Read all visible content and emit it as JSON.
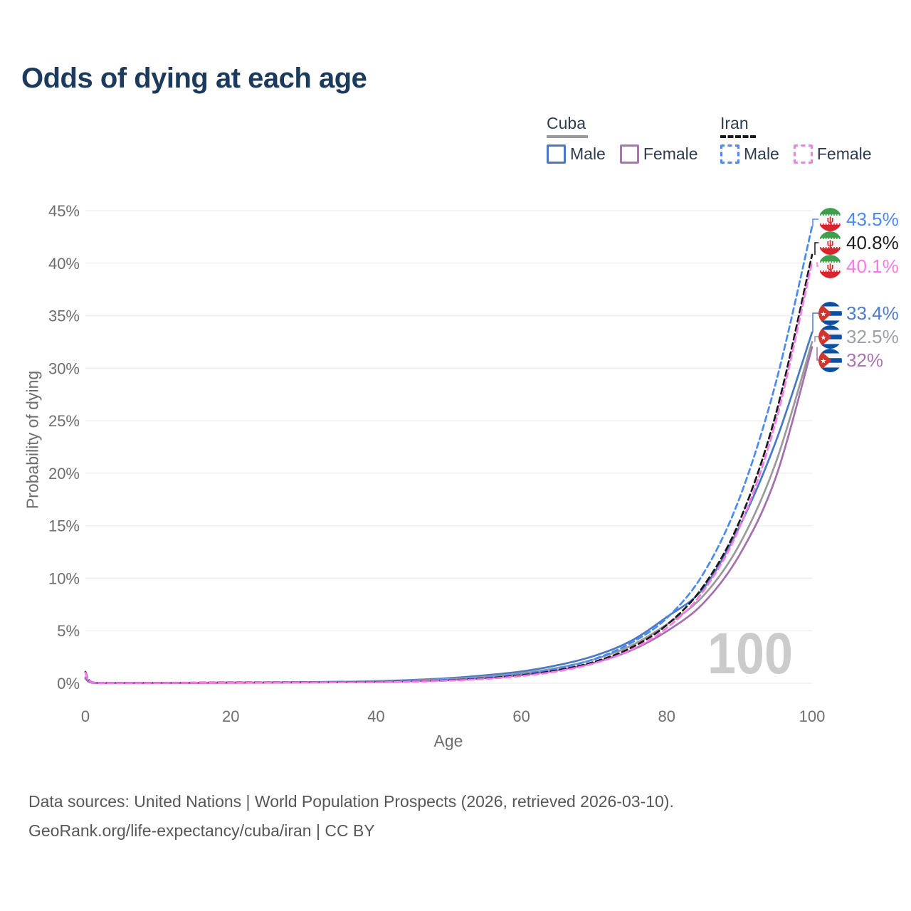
{
  "title": "Odds of dying at each age",
  "legend": {
    "groups": [
      {
        "label": "Cuba",
        "line_style": "solid",
        "underline_color": "#9a9a9a",
        "items": [
          {
            "label": "Male",
            "color": "#4779c4"
          },
          {
            "label": "Female",
            "color": "#ae74b0"
          }
        ]
      },
      {
        "label": "Iran",
        "line_style": "dashed",
        "underline_color": "#191919",
        "items": [
          {
            "label": "Male",
            "color": "#4a8af4"
          },
          {
            "label": "Female",
            "color": "#fa78e9"
          }
        ]
      }
    ]
  },
  "axes": {
    "y_title": "Probability of dying",
    "x_title": "Age"
  },
  "watermark": "100",
  "end_labels": [
    {
      "value": "43.5%",
      "color": "#4a8af4",
      "flag": "iran",
      "series": "Iran Male"
    },
    {
      "value": "40.8%",
      "color": "#1d1d1d",
      "flag": "iran",
      "series": "Iran All"
    },
    {
      "value": "40.1%",
      "color": "#fa78e9",
      "flag": "iran",
      "series": "Iran Female"
    },
    {
      "value": "33.4%",
      "color": "#4b7ccd",
      "flag": "cuba",
      "series": "Cuba Male"
    },
    {
      "value": "32.5%",
      "color": "#9da1a6",
      "flag": "cuba",
      "series": "Cuba All"
    },
    {
      "value": "32%",
      "color": "#a973b2",
      "flag": "cuba",
      "series": "Cuba Female"
    }
  ],
  "footer": {
    "line1": "Data sources: United Nations | World Population Prospects (2026, retrieved 2026-03-10).",
    "line2": "GeoRank.org/life-expectancy/cuba/iran | CC BY"
  },
  "chart_data": {
    "type": "line",
    "title": "Odds of dying at each age",
    "xlabel": "Age",
    "ylabel": "Probability of dying",
    "xlim": [
      0,
      100
    ],
    "ylim": [
      0,
      45
    ],
    "x_ticks": [
      0,
      20,
      40,
      60,
      80,
      100
    ],
    "y_ticks": [
      0,
      5,
      10,
      15,
      20,
      25,
      30,
      35,
      40,
      45
    ],
    "y_tick_labels": [
      "0%",
      "5%",
      "10%",
      "15%",
      "20%",
      "25%",
      "30%",
      "35%",
      "40%",
      "45%"
    ],
    "grid": "horizontal-only",
    "legend_position": "top-right",
    "unit": "percent",
    "series": [
      {
        "name": "Cuba Male",
        "color": "#4779c4",
        "dash": "solid",
        "end_label": "33.4%",
        "points": [
          [
            0,
            0.55
          ],
          [
            1,
            0.05
          ],
          [
            5,
            0.03
          ],
          [
            10,
            0.03
          ],
          [
            15,
            0.05
          ],
          [
            20,
            0.07
          ],
          [
            25,
            0.08
          ],
          [
            30,
            0.1
          ],
          [
            35,
            0.14
          ],
          [
            40,
            0.2
          ],
          [
            45,
            0.31
          ],
          [
            50,
            0.48
          ],
          [
            55,
            0.75
          ],
          [
            60,
            1.12
          ],
          [
            65,
            1.72
          ],
          [
            70,
            2.6
          ],
          [
            75,
            4.0
          ],
          [
            80,
            6.3
          ],
          [
            85,
            9.0
          ],
          [
            90,
            14.9
          ],
          [
            95,
            23.0
          ],
          [
            100,
            33.4
          ]
        ]
      },
      {
        "name": "Cuba All",
        "color": "#9a9a9a",
        "dash": "solid",
        "end_label": "32.5%",
        "points": [
          [
            0,
            0.5
          ],
          [
            1,
            0.04
          ],
          [
            5,
            0.025
          ],
          [
            10,
            0.025
          ],
          [
            15,
            0.04
          ],
          [
            20,
            0.06
          ],
          [
            25,
            0.07
          ],
          [
            30,
            0.09
          ],
          [
            35,
            0.12
          ],
          [
            40,
            0.17
          ],
          [
            45,
            0.26
          ],
          [
            50,
            0.4
          ],
          [
            55,
            0.61
          ],
          [
            60,
            0.95
          ],
          [
            65,
            1.47
          ],
          [
            70,
            2.27
          ],
          [
            75,
            3.55
          ],
          [
            80,
            5.6
          ],
          [
            85,
            8.3
          ],
          [
            90,
            13.2
          ],
          [
            95,
            21.0
          ],
          [
            100,
            32.5
          ]
        ]
      },
      {
        "name": "Cuba Female",
        "color": "#a46fae",
        "dash": "solid",
        "end_label": "32%",
        "points": [
          [
            0,
            0.45
          ],
          [
            1,
            0.04
          ],
          [
            5,
            0.02
          ],
          [
            10,
            0.02
          ],
          [
            15,
            0.03
          ],
          [
            20,
            0.04
          ],
          [
            25,
            0.05
          ],
          [
            30,
            0.07
          ],
          [
            35,
            0.09
          ],
          [
            40,
            0.13
          ],
          [
            45,
            0.2
          ],
          [
            50,
            0.31
          ],
          [
            55,
            0.49
          ],
          [
            60,
            0.78
          ],
          [
            65,
            1.24
          ],
          [
            70,
            1.95
          ],
          [
            75,
            3.1
          ],
          [
            80,
            4.95
          ],
          [
            85,
            7.6
          ],
          [
            90,
            12.2
          ],
          [
            95,
            19.6
          ],
          [
            100,
            32.0
          ]
        ]
      },
      {
        "name": "Iran Male",
        "color": "#4a8af4",
        "dash": "dashed",
        "end_label": "43.5%",
        "points": [
          [
            0,
            1.1
          ],
          [
            1,
            0.08
          ],
          [
            5,
            0.04
          ],
          [
            10,
            0.04
          ],
          [
            15,
            0.06
          ],
          [
            20,
            0.08
          ],
          [
            25,
            0.09
          ],
          [
            30,
            0.1
          ],
          [
            35,
            0.11
          ],
          [
            40,
            0.13
          ],
          [
            45,
            0.2
          ],
          [
            50,
            0.33
          ],
          [
            55,
            0.53
          ],
          [
            60,
            0.86
          ],
          [
            65,
            1.4
          ],
          [
            70,
            2.3
          ],
          [
            75,
            3.8
          ],
          [
            80,
            6.2
          ],
          [
            85,
            10.4
          ],
          [
            90,
            17.6
          ],
          [
            95,
            28.6
          ],
          [
            100,
            43.5
          ]
        ]
      },
      {
        "name": "Iran All",
        "color": "#191919",
        "dash": "dashed",
        "end_label": "40.8%",
        "points": [
          [
            0,
            1.05
          ],
          [
            1,
            0.07
          ],
          [
            5,
            0.035
          ],
          [
            10,
            0.035
          ],
          [
            15,
            0.05
          ],
          [
            20,
            0.065
          ],
          [
            25,
            0.075
          ],
          [
            30,
            0.085
          ],
          [
            35,
            0.095
          ],
          [
            40,
            0.11
          ],
          [
            45,
            0.17
          ],
          [
            50,
            0.28
          ],
          [
            55,
            0.46
          ],
          [
            60,
            0.76
          ],
          [
            65,
            1.24
          ],
          [
            70,
            2.03
          ],
          [
            75,
            3.35
          ],
          [
            80,
            5.55
          ],
          [
            85,
            9.2
          ],
          [
            90,
            15.4
          ],
          [
            95,
            25.6
          ],
          [
            100,
            40.8
          ]
        ]
      },
      {
        "name": "Iran Female",
        "color": "#fa78e9",
        "dash": "dashed",
        "end_label": "40.1%",
        "points": [
          [
            0,
            1.0
          ],
          [
            1,
            0.06
          ],
          [
            5,
            0.03
          ],
          [
            10,
            0.03
          ],
          [
            15,
            0.04
          ],
          [
            20,
            0.05
          ],
          [
            25,
            0.06
          ],
          [
            30,
            0.07
          ],
          [
            35,
            0.08
          ],
          [
            40,
            0.09
          ],
          [
            45,
            0.15
          ],
          [
            50,
            0.25
          ],
          [
            55,
            0.41
          ],
          [
            60,
            0.69
          ],
          [
            65,
            1.14
          ],
          [
            70,
            1.9
          ],
          [
            75,
            3.15
          ],
          [
            80,
            5.25
          ],
          [
            85,
            8.75
          ],
          [
            90,
            14.8
          ],
          [
            95,
            24.9
          ],
          [
            100,
            40.1
          ]
        ]
      }
    ]
  }
}
